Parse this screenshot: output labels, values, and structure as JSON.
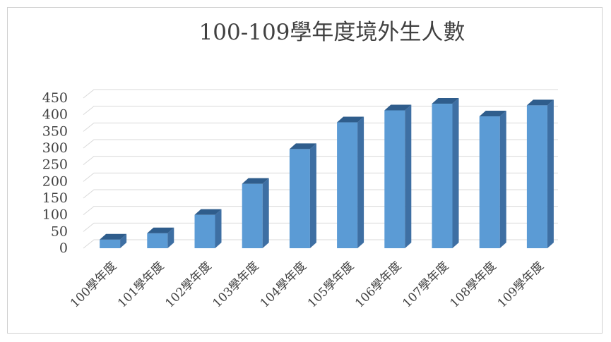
{
  "chart_data": {
    "type": "bar",
    "title": "100-109學年度境外生人數",
    "xlabel": "",
    "ylabel": "",
    "ylim": [
      0,
      450
    ],
    "yticks": [
      0,
      50,
      100,
      150,
      200,
      250,
      300,
      350,
      400,
      450
    ],
    "grid": true,
    "legend": "none",
    "style": "3d-column",
    "categories": [
      "100學年度",
      "101學年度",
      "102學年度",
      "103學年度",
      "104學年度",
      "105學年度",
      "106學年度",
      "107學年度",
      "108學年度",
      "109學年度"
    ],
    "values": [
      26,
      45,
      100,
      193,
      297,
      377,
      413,
      433,
      395,
      428
    ],
    "colors": {
      "bar_front": "#5B9BD5",
      "bar_side": "#3E6FA3",
      "bar_top": "#2F5D8C",
      "grid": "#d9d9d9"
    }
  }
}
